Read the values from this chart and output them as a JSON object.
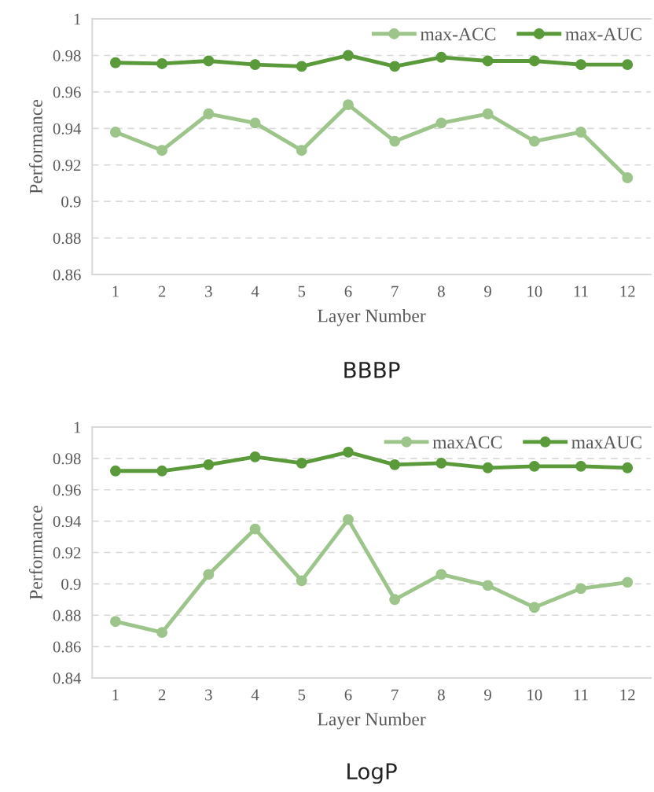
{
  "chart_data": [
    {
      "type": "line",
      "title": "BBBP",
      "xlabel": "Layer Number",
      "ylabel": "Performance",
      "categories": [
        "1",
        "2",
        "3",
        "4",
        "5",
        "6",
        "7",
        "8",
        "9",
        "10",
        "11",
        "12"
      ],
      "ylim": [
        0.86,
        1
      ],
      "yticks": [
        {
          "value": 0.86,
          "label": "0.86"
        },
        {
          "value": 0.88,
          "label": "0.88"
        },
        {
          "value": 0.9,
          "label": "0.9"
        },
        {
          "value": 0.92,
          "label": "0.92"
        },
        {
          "value": 0.94,
          "label": "0.94"
        },
        {
          "value": 0.96,
          "label": "0.96"
        },
        {
          "value": 0.98,
          "label": "0.98"
        },
        {
          "value": 1,
          "label": "1"
        }
      ],
      "grid": "y",
      "legend": "top right",
      "marker": "circle",
      "line_style": "solid",
      "series": [
        {
          "name": "max-ACC",
          "color": "#9dc58b",
          "values": [
            0.938,
            0.928,
            0.948,
            0.943,
            0.928,
            0.953,
            0.933,
            0.943,
            0.948,
            0.933,
            0.938,
            0.913
          ]
        },
        {
          "name": "max-AUC",
          "color": "#5b9a3b",
          "values": [
            0.976,
            0.9755,
            0.977,
            0.975,
            0.974,
            0.98,
            0.974,
            0.979,
            0.977,
            0.977,
            0.975,
            0.975
          ]
        }
      ]
    },
    {
      "type": "line",
      "title": "LogP",
      "xlabel": "Layer Number",
      "ylabel": "Performance",
      "categories": [
        "1",
        "2",
        "3",
        "4",
        "5",
        "6",
        "7",
        "8",
        "9",
        "10",
        "11",
        "12"
      ],
      "ylim": [
        0.84,
        1
      ],
      "yticks": [
        {
          "value": 0.84,
          "label": "0.84"
        },
        {
          "value": 0.86,
          "label": "0.86"
        },
        {
          "value": 0.88,
          "label": "0.88"
        },
        {
          "value": 0.9,
          "label": "0.9"
        },
        {
          "value": 0.92,
          "label": "0.92"
        },
        {
          "value": 0.94,
          "label": "0.94"
        },
        {
          "value": 0.96,
          "label": "0.96"
        },
        {
          "value": 0.98,
          "label": "0.98"
        },
        {
          "value": 1,
          "label": "1"
        }
      ],
      "grid": "y",
      "legend": "top right",
      "marker": "circle",
      "line_style": "solid",
      "series": [
        {
          "name": "maxACC",
          "color": "#9dc58b",
          "values": [
            0.876,
            0.869,
            0.906,
            0.935,
            0.902,
            0.941,
            0.89,
            0.906,
            0.899,
            0.885,
            0.897,
            0.901
          ]
        },
        {
          "name": "maxAUC",
          "color": "#5b9a3b",
          "values": [
            0.972,
            0.972,
            0.976,
            0.981,
            0.977,
            0.984,
            0.976,
            0.977,
            0.974,
            0.975,
            0.975,
            0.974
          ]
        }
      ]
    }
  ]
}
